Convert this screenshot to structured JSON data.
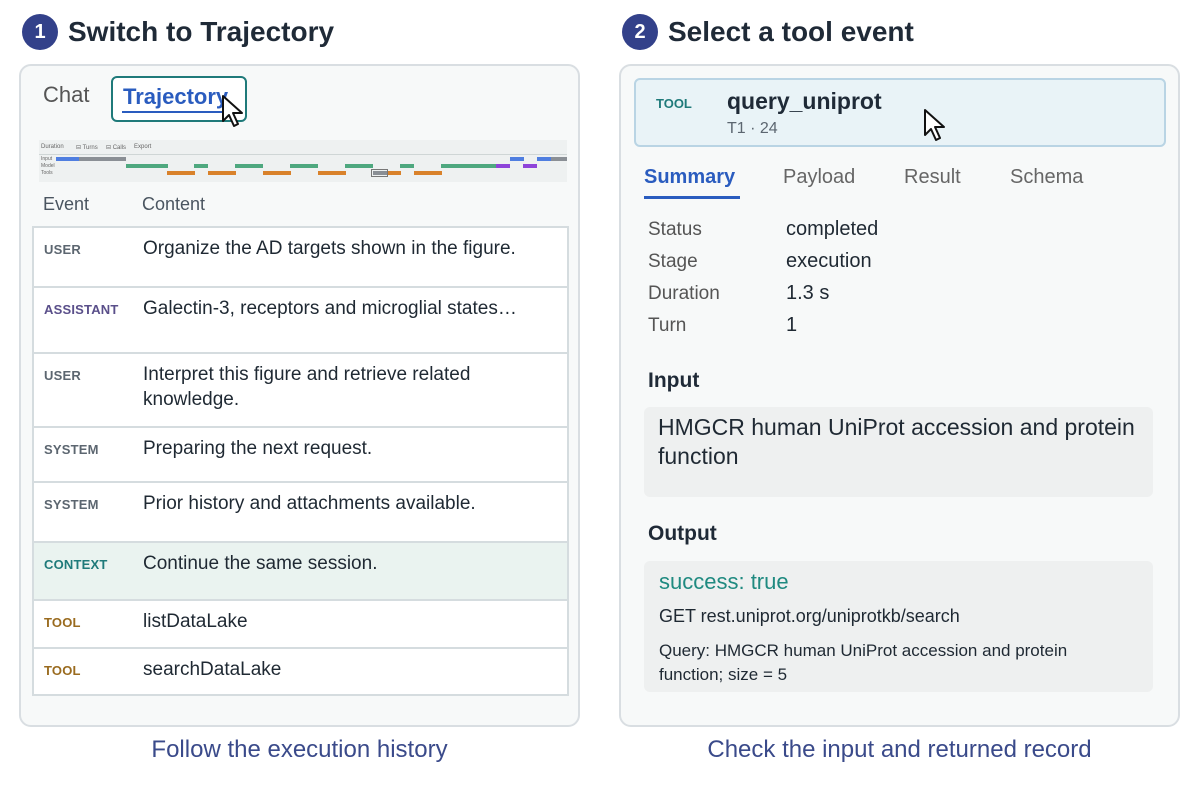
{
  "steps": [
    {
      "number": "1",
      "title": "Switch to Trajectory",
      "caption": "Follow the execution history"
    },
    {
      "number": "2",
      "title": "Select a tool event",
      "caption": "Check the input and returned record"
    }
  ],
  "left": {
    "tabs": {
      "chat": "Chat",
      "trajectory": "Trajectory"
    },
    "minimap": {
      "headers": [
        "Duration",
        "⊟ Turns",
        "⊟ Calls",
        "Export"
      ],
      "rows": [
        "Input",
        "Model",
        "Tools"
      ]
    },
    "table": {
      "headers": {
        "event": "Event",
        "content": "Content"
      },
      "rows": [
        {
          "role": "USER",
          "content": "Organize the AD targets shown in the figure."
        },
        {
          "role": "ASSISTANT",
          "content": "Galectin-3, receptors and microglial states…"
        },
        {
          "role": "USER",
          "content": "Interpret this figure and retrieve related knowledge."
        },
        {
          "role": "SYSTEM",
          "content": "Preparing the next request."
        },
        {
          "role": "SYSTEM",
          "content": "Prior history and attachments available."
        },
        {
          "role": "CONTEXT",
          "content": "Continue the same session."
        },
        {
          "role": "TOOL",
          "content": "listDataLake"
        },
        {
          "role": "TOOL",
          "content": "searchDataLake"
        }
      ]
    }
  },
  "right": {
    "tool": {
      "tag": "TOOL",
      "name": "query_uniprot",
      "meta": "T1 · 24"
    },
    "tabs": [
      "Summary",
      "Payload",
      "Result",
      "Schema"
    ],
    "summary": [
      {
        "key": "Status",
        "value": "completed"
      },
      {
        "key": "Stage",
        "value": "execution"
      },
      {
        "key": "Duration",
        "value": "1.3 s"
      },
      {
        "key": "Turn",
        "value": "1"
      }
    ],
    "input": {
      "heading": "Input",
      "text": "HMGCR human UniProt accession and protein function"
    },
    "output": {
      "heading": "Output",
      "status": "success: true",
      "request": "GET rest.uniprot.org/uniprotkb/search",
      "query": "Query: HMGCR human UniProt accession and protein function; size = 5"
    }
  },
  "colors": {
    "accent": "#2a5cbf",
    "step_badge": "#33418a",
    "user": "#5c6670",
    "assistant": "#5a4f8a",
    "system": "#5c6670",
    "context": "#1f7a7a",
    "tool": "#9a6b1f",
    "success": "#1f8a80"
  }
}
